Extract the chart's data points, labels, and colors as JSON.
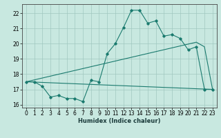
{
  "title": "",
  "xlabel": "Humidex (Indice chaleur)",
  "xlim": [
    -0.5,
    23.5
  ],
  "ylim": [
    15.8,
    22.6
  ],
  "xticks": [
    0,
    1,
    2,
    3,
    4,
    5,
    6,
    7,
    8,
    9,
    10,
    11,
    12,
    13,
    14,
    15,
    16,
    17,
    18,
    19,
    20,
    21,
    22,
    23
  ],
  "yticks": [
    16,
    17,
    18,
    19,
    20,
    21,
    22
  ],
  "bg_color": "#c8e8e0",
  "line_color": "#1a7a6e",
  "grid_color": "#a0c8c0",
  "line1_x": [
    0,
    1,
    2,
    3,
    4,
    5,
    6,
    7,
    8,
    9,
    10,
    11,
    12,
    13,
    14,
    15,
    16,
    17,
    18,
    19,
    20,
    21,
    22,
    23
  ],
  "line1_y": [
    17.5,
    17.5,
    17.2,
    16.5,
    16.6,
    16.4,
    16.4,
    16.2,
    17.6,
    17.5,
    19.35,
    20.0,
    21.05,
    22.2,
    22.2,
    21.35,
    21.5,
    20.5,
    20.6,
    20.35,
    19.6,
    19.8,
    17.0,
    17.0
  ],
  "line2_x": [
    0,
    21,
    22,
    23
  ],
  "line2_y": [
    17.5,
    20.1,
    19.8,
    17.0
  ],
  "line3_x": [
    0,
    23
  ],
  "line3_y": [
    17.5,
    17.0
  ]
}
